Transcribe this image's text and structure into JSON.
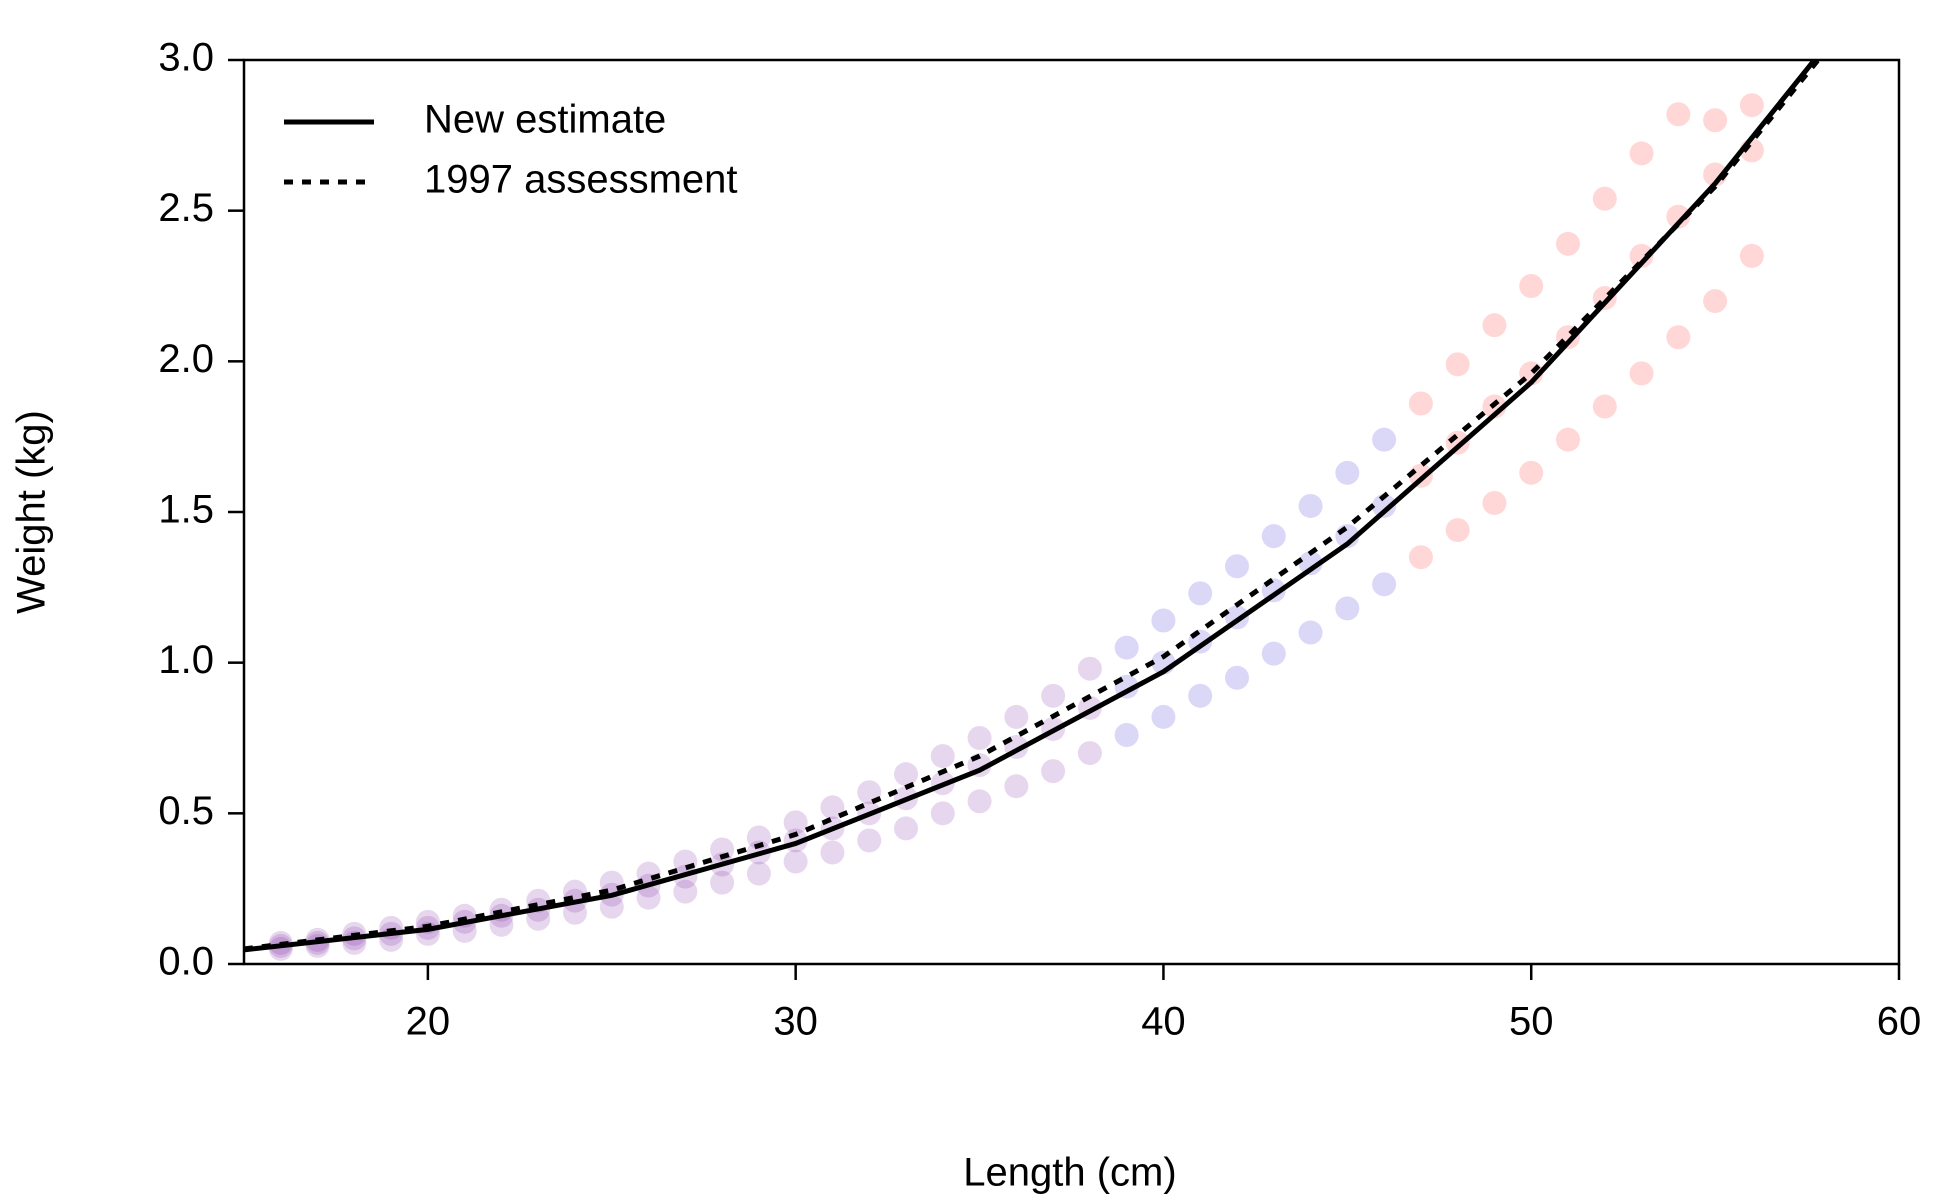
{
  "chart_data": {
    "type": "scatter",
    "x_label": "Length (cm)",
    "y_label": "Weight (kg)",
    "xlim": [
      15,
      60
    ],
    "ylim": [
      0,
      3
    ],
    "xticks": [
      20,
      30,
      40,
      50,
      60
    ],
    "yticks": [
      {
        "value": 0,
        "label": "0.0"
      },
      {
        "value": 0.5,
        "label": "0.5"
      },
      {
        "value": 1,
        "label": "1.0"
      },
      {
        "value": 1.5,
        "label": "1.5"
      },
      {
        "value": 2,
        "label": "2.0"
      },
      {
        "value": 2.5,
        "label": "2.5"
      },
      {
        "value": 3,
        "label": "3.0"
      }
    ],
    "legend": "top-left",
    "point_groups": [
      {
        "color": "#7a1fa2",
        "x": [
          16,
          16,
          16,
          17,
          17,
          17,
          18,
          18,
          18,
          19,
          19,
          19,
          20,
          20,
          20,
          21,
          21,
          21,
          22,
          22,
          22,
          23,
          23,
          23,
          24,
          24,
          24,
          25,
          25,
          25,
          26,
          26,
          26,
          27,
          27,
          27,
          28,
          28,
          28,
          29,
          29,
          29,
          30,
          30,
          30,
          31,
          31,
          31,
          32,
          32,
          32,
          33,
          33,
          33,
          34,
          34,
          34,
          35,
          35,
          35,
          36,
          36,
          36,
          37,
          37,
          37,
          38,
          38,
          38
        ],
        "y": [
          0.05,
          0.06,
          0.07,
          0.06,
          0.07,
          0.08,
          0.07,
          0.085,
          0.1,
          0.08,
          0.1,
          0.12,
          0.1,
          0.12,
          0.14,
          0.11,
          0.14,
          0.16,
          0.13,
          0.16,
          0.18,
          0.15,
          0.18,
          0.21,
          0.17,
          0.21,
          0.24,
          0.19,
          0.23,
          0.27,
          0.22,
          0.26,
          0.3,
          0.24,
          0.29,
          0.34,
          0.27,
          0.33,
          0.38,
          0.3,
          0.37,
          0.42,
          0.34,
          0.41,
          0.47,
          0.37,
          0.45,
          0.52,
          0.41,
          0.5,
          0.57,
          0.45,
          0.55,
          0.63,
          0.5,
          0.6,
          0.69,
          0.54,
          0.66,
          0.75,
          0.59,
          0.72,
          0.82,
          0.64,
          0.78,
          0.89,
          0.7,
          0.85,
          0.98
        ]
      },
      {
        "color": "#3a1fd0",
        "x": [
          39,
          39,
          39,
          40,
          40,
          40,
          41,
          41,
          41,
          42,
          42,
          42,
          43,
          43,
          43,
          44,
          44,
          44,
          45,
          45,
          45,
          46,
          46,
          46
        ],
        "y": [
          0.76,
          0.92,
          1.05,
          0.82,
          1.0,
          1.14,
          0.89,
          1.07,
          1.23,
          0.95,
          1.15,
          1.32,
          1.03,
          1.24,
          1.42,
          1.1,
          1.33,
          1.52,
          1.18,
          1.42,
          1.63,
          1.26,
          1.52,
          1.74
        ]
      },
      {
        "color": "#ff2020",
        "x": [
          47,
          47,
          47,
          48,
          48,
          48,
          49,
          49,
          49,
          50,
          50,
          50,
          51,
          51,
          51,
          52,
          52,
          52,
          53,
          53,
          53,
          54,
          54,
          54,
          55,
          55,
          55,
          56,
          56,
          56
        ],
        "y": [
          1.35,
          1.62,
          1.86,
          1.44,
          1.73,
          1.99,
          1.53,
          1.85,
          2.12,
          1.63,
          1.96,
          2.25,
          1.74,
          2.08,
          2.39,
          1.85,
          2.21,
          2.54,
          1.96,
          2.35,
          2.69,
          2.08,
          2.48,
          2.82,
          2.2,
          2.62,
          2.8,
          2.35,
          2.7,
          2.85
        ]
      }
    ],
    "series": [
      {
        "name": "New estimate",
        "color": "#000000",
        "dash": "solid",
        "x": [
          15,
          20,
          25,
          30,
          35,
          40,
          45,
          50,
          55,
          57.7
        ],
        "values": [
          0.047,
          0.115,
          0.228,
          0.4,
          0.643,
          0.97,
          1.394,
          1.93,
          2.59,
          3.0
        ]
      },
      {
        "name": "1997 assessment",
        "color": "#000000",
        "dash": "dotted",
        "x": [
          15,
          20,
          25,
          30,
          35,
          40,
          45,
          50,
          55,
          57.8
        ],
        "values": [
          0.05,
          0.125,
          0.245,
          0.43,
          0.69,
          1.02,
          1.45,
          1.96,
          2.58,
          3.0
        ]
      }
    ]
  }
}
